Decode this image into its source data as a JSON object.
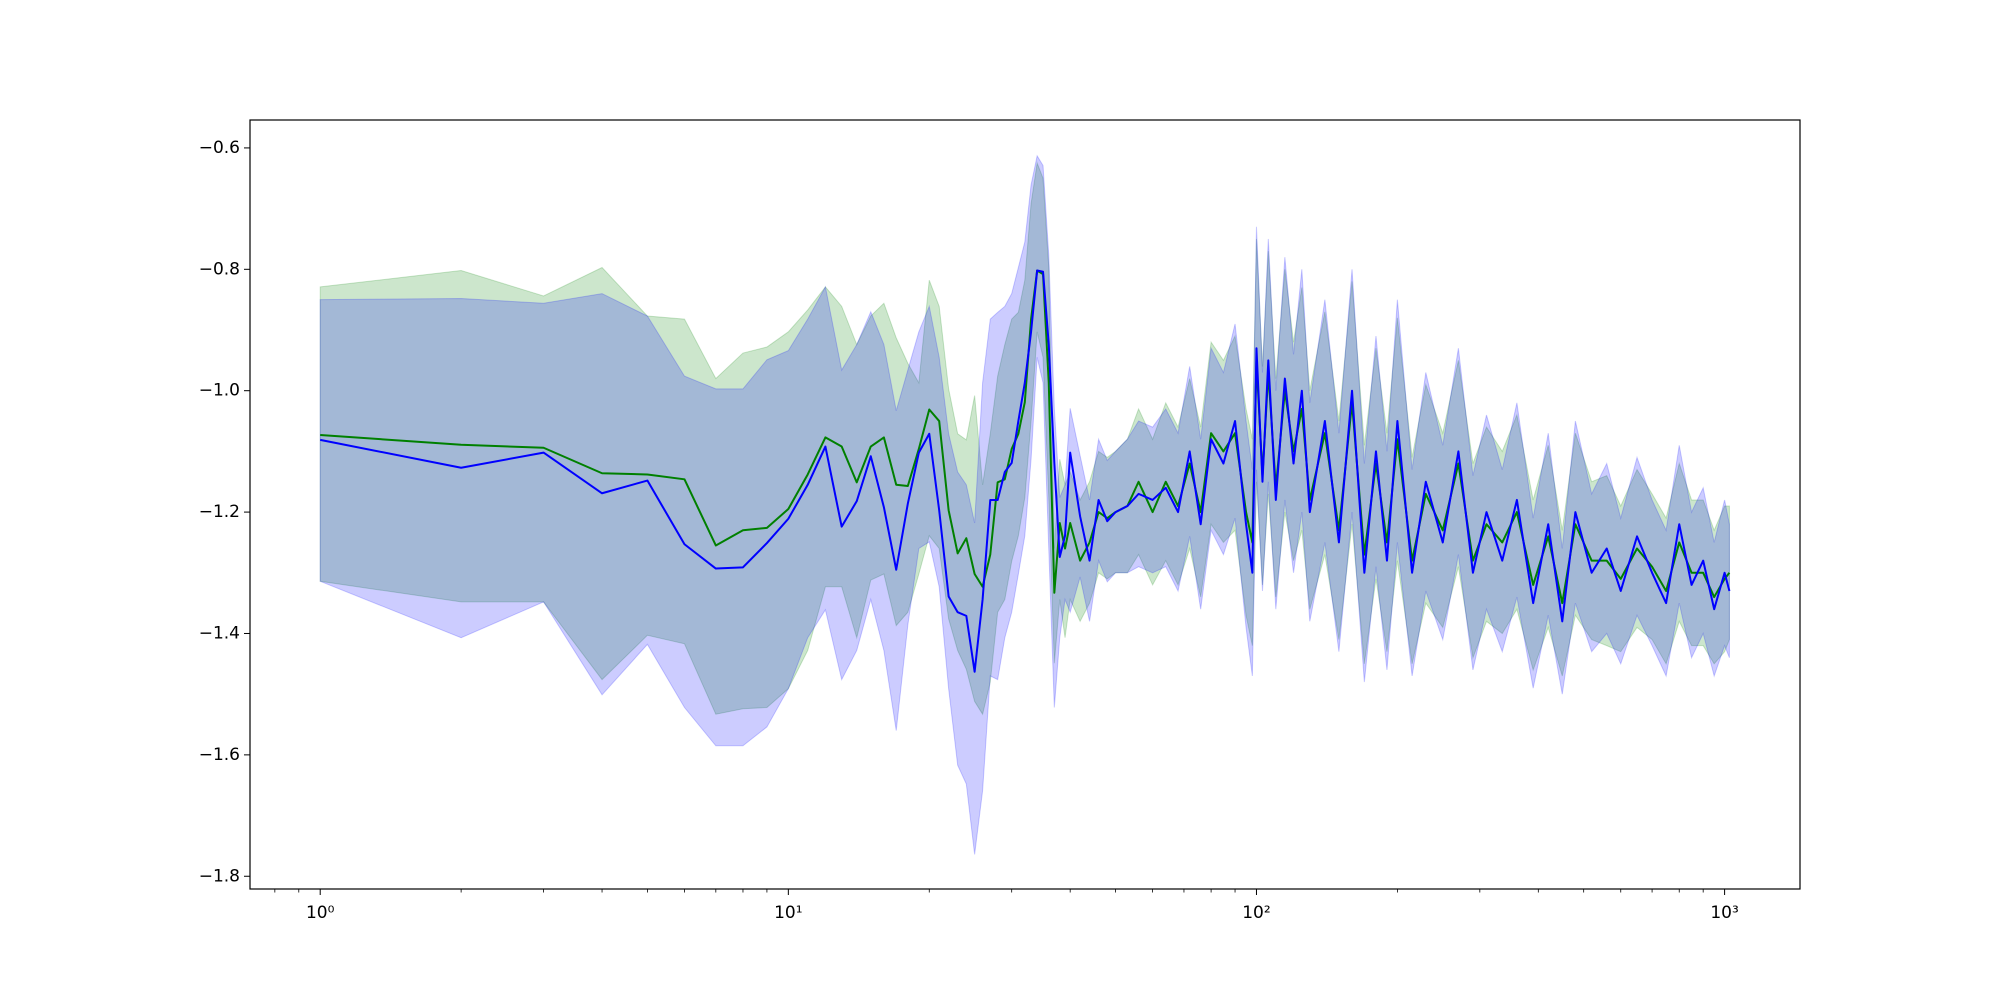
{
  "chart_data": {
    "type": "line-band",
    "xscale": "log",
    "xlim": [
      0.708,
      1449
    ],
    "ylim": [
      -1.821,
      -0.554
    ],
    "xticks": [
      {
        "value": 1,
        "label": "10⁰"
      },
      {
        "value": 10,
        "label": "10¹"
      },
      {
        "value": 100,
        "label": "10²"
      },
      {
        "value": 1000,
        "label": "10³"
      }
    ],
    "xminorticks": [
      0.8,
      0.9,
      2,
      3,
      4,
      5,
      6,
      7,
      8,
      9,
      20,
      30,
      40,
      50,
      60,
      70,
      80,
      90,
      200,
      300,
      400,
      500,
      600,
      700,
      800,
      900
    ],
    "yticks": [
      {
        "value": -0.6,
        "label": "−0.6"
      },
      {
        "value": -0.8,
        "label": "−0.8"
      },
      {
        "value": -1.0,
        "label": "−1.0"
      },
      {
        "value": -1.2,
        "label": "−1.2"
      },
      {
        "value": -1.4,
        "label": "−1.4"
      },
      {
        "value": -1.6,
        "label": "−1.6"
      },
      {
        "value": -1.8,
        "label": "−1.8"
      }
    ],
    "x": [
      1,
      2,
      3,
      4,
      5,
      6,
      7,
      8,
      9,
      10,
      11,
      12,
      13,
      14,
      15,
      16,
      17,
      18,
      19,
      20,
      21,
      22,
      23,
      24,
      25,
      26,
      27,
      28,
      29,
      30,
      31,
      32,
      33,
      34,
      35,
      36,
      37,
      38,
      39,
      40,
      42,
      44,
      46,
      48,
      50,
      53,
      56,
      60,
      64,
      68,
      72,
      76,
      80,
      85,
      90,
      95,
      98,
      100,
      103,
      106,
      110,
      115,
      120,
      125,
      130,
      140,
      150,
      160,
      170,
      180,
      190,
      200,
      215,
      230,
      250,
      270,
      290,
      310,
      335,
      360,
      390,
      420,
      450,
      480,
      520,
      560,
      600,
      650,
      700,
      750,
      800,
      850,
      900,
      950,
      1000,
      1024
    ],
    "series": [
      {
        "color": "#008000",
        "band_opacity": 0.2,
        "values": [
          -1.073,
          -1.089,
          -1.094,
          -1.136,
          -1.138,
          -1.146,
          -1.255,
          -1.23,
          -1.226,
          -1.195,
          -1.138,
          -1.077,
          -1.092,
          -1.151,
          -1.092,
          -1.077,
          -1.155,
          -1.157,
          -1.096,
          -1.031,
          -1.05,
          -1.197,
          -1.268,
          -1.243,
          -1.302,
          -1.323,
          -1.27,
          -1.151,
          -1.146,
          -1.096,
          -1.071,
          -1.019,
          -0.882,
          -0.802,
          -0.808,
          -0.987,
          -1.333,
          -1.218,
          -1.26,
          -1.218,
          -1.28,
          -1.25,
          -1.2,
          -1.21,
          -1.2,
          -1.19,
          -1.15,
          -1.2,
          -1.15,
          -1.19,
          -1.12,
          -1.2,
          -1.07,
          -1.1,
          -1.07,
          -1.2,
          -1.25,
          -0.95,
          -1.14,
          -0.97,
          -1.16,
          -1.0,
          -1.1,
          -1.03,
          -1.18,
          -1.07,
          -1.23,
          -1.02,
          -1.27,
          -1.12,
          -1.25,
          -1.08,
          -1.28,
          -1.17,
          -1.23,
          -1.12,
          -1.28,
          -1.22,
          -1.25,
          -1.2,
          -1.32,
          -1.24,
          -1.35,
          -1.22,
          -1.28,
          -1.28,
          -1.31,
          -1.26,
          -1.29,
          -1.33,
          -1.25,
          -1.3,
          -1.3,
          -1.34,
          -1.31,
          -1.3
        ],
        "upper": [
          -0.829,
          -0.802,
          -0.844,
          -0.797,
          -0.877,
          -0.882,
          -0.98,
          -0.938,
          -0.928,
          -0.903,
          -0.867,
          -0.829,
          -0.861,
          -0.924,
          -0.877,
          -0.856,
          -0.913,
          -0.955,
          -0.987,
          -0.818,
          -0.861,
          -0.997,
          -1.071,
          -1.081,
          -1.008,
          -1.155,
          -1.071,
          -0.976,
          -0.924,
          -0.882,
          -0.871,
          -0.818,
          -0.692,
          -0.625,
          -0.65,
          -0.797,
          -1.26,
          -1.113,
          -1.155,
          -1.134,
          -1.18,
          -1.15,
          -1.1,
          -1.11,
          -1.1,
          -1.08,
          -1.03,
          -1.08,
          -1.02,
          -1.06,
          -0.98,
          -1.06,
          -0.92,
          -0.95,
          -0.91,
          -1.03,
          -1.08,
          -0.75,
          -0.96,
          -0.77,
          -0.98,
          -0.8,
          -0.92,
          -0.83,
          -1.0,
          -0.87,
          -1.05,
          -0.82,
          -1.09,
          -0.93,
          -1.07,
          -0.88,
          -1.11,
          -0.99,
          -1.07,
          -0.95,
          -1.12,
          -1.06,
          -1.1,
          -1.04,
          -1.18,
          -1.09,
          -1.23,
          -1.07,
          -1.15,
          -1.14,
          -1.19,
          -1.13,
          -1.17,
          -1.21,
          -1.12,
          -1.18,
          -1.18,
          -1.23,
          -1.19,
          -1.19
        ],
        "lower": [
          -1.314,
          -1.348,
          -1.348,
          -1.476,
          -1.403,
          -1.417,
          -1.533,
          -1.524,
          -1.522,
          -1.491,
          -1.428,
          -1.323,
          -1.323,
          -1.407,
          -1.312,
          -1.302,
          -1.387,
          -1.365,
          -1.302,
          -1.239,
          -1.26,
          -1.376,
          -1.428,
          -1.459,
          -1.512,
          -1.533,
          -1.48,
          -1.365,
          -1.344,
          -1.281,
          -1.239,
          -1.176,
          -1.05,
          -0.903,
          -0.945,
          -1.176,
          -1.449,
          -1.344,
          -1.407,
          -1.344,
          -1.38,
          -1.35,
          -1.3,
          -1.31,
          -1.3,
          -1.3,
          -1.27,
          -1.32,
          -1.28,
          -1.32,
          -1.26,
          -1.34,
          -1.22,
          -1.25,
          -1.23,
          -1.37,
          -1.42,
          -1.15,
          -1.32,
          -1.17,
          -1.34,
          -1.2,
          -1.28,
          -1.23,
          -1.36,
          -1.27,
          -1.41,
          -1.22,
          -1.45,
          -1.31,
          -1.43,
          -1.28,
          -1.45,
          -1.35,
          -1.39,
          -1.29,
          -1.44,
          -1.38,
          -1.4,
          -1.36,
          -1.46,
          -1.39,
          -1.47,
          -1.37,
          -1.41,
          -1.42,
          -1.43,
          -1.39,
          -1.41,
          -1.45,
          -1.38,
          -1.42,
          -1.42,
          -1.45,
          -1.43,
          -1.41
        ]
      },
      {
        "color": "#0000ff",
        "band_opacity": 0.2,
        "values": [
          -1.081,
          -1.127,
          -1.102,
          -1.169,
          -1.148,
          -1.253,
          -1.293,
          -1.291,
          -1.251,
          -1.211,
          -1.155,
          -1.092,
          -1.224,
          -1.182,
          -1.108,
          -1.192,
          -1.295,
          -1.186,
          -1.102,
          -1.071,
          -1.197,
          -1.339,
          -1.365,
          -1.371,
          -1.463,
          -1.344,
          -1.18,
          -1.18,
          -1.134,
          -1.119,
          -1.05,
          -0.987,
          -0.903,
          -0.802,
          -0.804,
          -0.924,
          -1.119,
          -1.274,
          -1.239,
          -1.102,
          -1.207,
          -1.28,
          -1.18,
          -1.215,
          -1.2,
          -1.19,
          -1.17,
          -1.18,
          -1.16,
          -1.2,
          -1.1,
          -1.22,
          -1.08,
          -1.12,
          -1.05,
          -1.22,
          -1.3,
          -0.93,
          -1.15,
          -0.95,
          -1.18,
          -0.98,
          -1.12,
          -1.0,
          -1.2,
          -1.05,
          -1.25,
          -1.0,
          -1.3,
          -1.1,
          -1.28,
          -1.05,
          -1.3,
          -1.15,
          -1.25,
          -1.1,
          -1.3,
          -1.2,
          -1.28,
          -1.18,
          -1.35,
          -1.22,
          -1.38,
          -1.2,
          -1.3,
          -1.26,
          -1.33,
          -1.24,
          -1.3,
          -1.35,
          -1.22,
          -1.32,
          -1.28,
          -1.36,
          -1.3,
          -1.33
        ],
        "upper": [
          -0.85,
          -0.848,
          -0.856,
          -0.84,
          -0.877,
          -0.976,
          -0.997,
          -0.997,
          -0.949,
          -0.934,
          -0.882,
          -0.829,
          -0.966,
          -0.924,
          -0.87,
          -0.924,
          -1.033,
          -0.966,
          -0.903,
          -0.861,
          -0.945,
          -1.071,
          -1.134,
          -1.155,
          -1.218,
          -0.987,
          -0.882,
          -0.871,
          -0.861,
          -0.84,
          -0.797,
          -0.755,
          -0.661,
          -0.613,
          -0.629,
          -0.776,
          -1.029,
          -1.176,
          -1.155,
          -1.029,
          -1.107,
          -1.18,
          -1.08,
          -1.115,
          -1.1,
          -1.08,
          -1.05,
          -1.06,
          -1.03,
          -1.07,
          -0.96,
          -1.08,
          -0.93,
          -0.97,
          -0.89,
          -1.05,
          -1.13,
          -0.73,
          -0.97,
          -0.75,
          -1.0,
          -0.78,
          -0.94,
          -0.8,
          -1.02,
          -0.85,
          -1.07,
          -0.8,
          -1.12,
          -0.91,
          -1.1,
          -0.85,
          -1.13,
          -0.97,
          -1.09,
          -0.93,
          -1.14,
          -1.04,
          -1.13,
          -1.02,
          -1.21,
          -1.07,
          -1.26,
          -1.05,
          -1.17,
          -1.12,
          -1.21,
          -1.11,
          -1.18,
          -1.23,
          -1.09,
          -1.2,
          -1.16,
          -1.25,
          -1.18,
          -1.22
        ],
        "lower": [
          -1.314,
          -1.407,
          -1.348,
          -1.501,
          -1.418,
          -1.522,
          -1.585,
          -1.585,
          -1.554,
          -1.491,
          -1.407,
          -1.361,
          -1.476,
          -1.428,
          -1.344,
          -1.428,
          -1.56,
          -1.386,
          -1.26,
          -1.249,
          -1.323,
          -1.491,
          -1.617,
          -1.648,
          -1.764,
          -1.659,
          -1.47,
          -1.476,
          -1.407,
          -1.365,
          -1.302,
          -1.239,
          -1.113,
          -0.945,
          -0.987,
          -1.26,
          -1.522,
          -1.407,
          -1.344,
          -1.365,
          -1.307,
          -1.38,
          -1.28,
          -1.315,
          -1.3,
          -1.3,
          -1.29,
          -1.3,
          -1.29,
          -1.33,
          -1.24,
          -1.36,
          -1.23,
          -1.27,
          -1.21,
          -1.39,
          -1.47,
          -1.13,
          -1.33,
          -1.15,
          -1.36,
          -1.18,
          -1.3,
          -1.2,
          -1.38,
          -1.25,
          -1.43,
          -1.2,
          -1.48,
          -1.29,
          -1.46,
          -1.25,
          -1.47,
          -1.33,
          -1.41,
          -1.27,
          -1.46,
          -1.36,
          -1.43,
          -1.34,
          -1.49,
          -1.37,
          -1.5,
          -1.35,
          -1.43,
          -1.4,
          -1.45,
          -1.37,
          -1.42,
          -1.47,
          -1.35,
          -1.44,
          -1.4,
          -1.47,
          -1.42,
          -1.44
        ]
      }
    ]
  }
}
